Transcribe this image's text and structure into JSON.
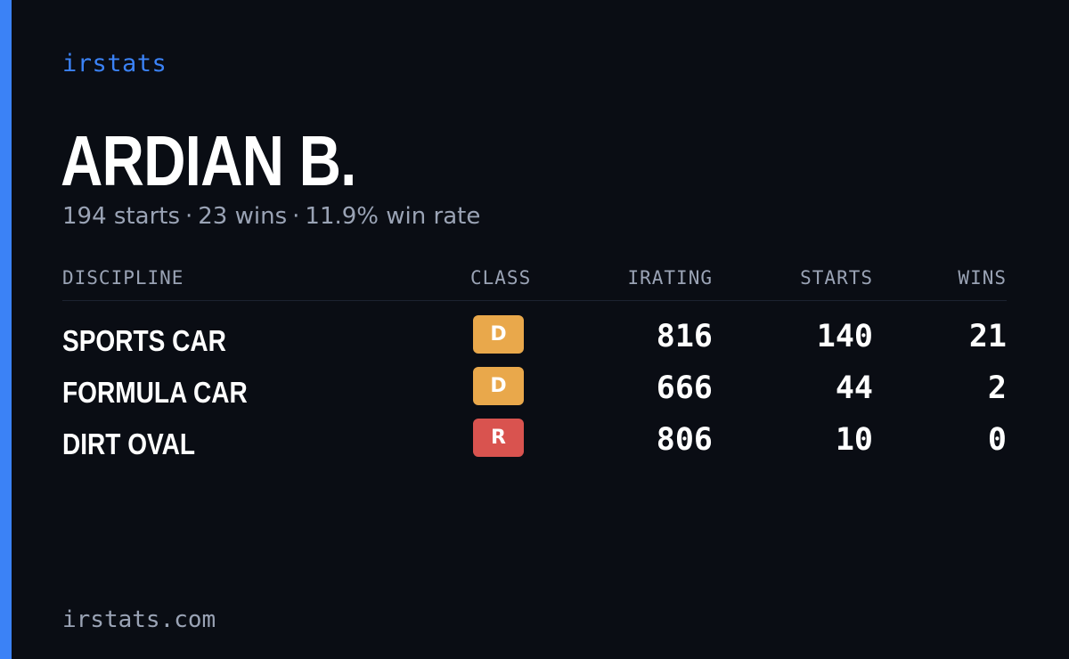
{
  "brand": "irstats",
  "player": {
    "name": "ARDIAN B."
  },
  "summary": {
    "starts": "194 starts",
    "wins": "23 wins",
    "win_rate": "11.9% win rate",
    "separator": "·"
  },
  "table": {
    "headers": {
      "discipline": "DISCIPLINE",
      "class": "CLASS",
      "irating": "IRATING",
      "starts": "STARTS",
      "wins": "WINS"
    },
    "rows": [
      {
        "discipline": "SPORTS CAR",
        "class": "D",
        "class_color": "#e9a84b",
        "irating": "816",
        "starts": "140",
        "wins": "21"
      },
      {
        "discipline": "FORMULA CAR",
        "class": "D",
        "class_color": "#e9a84b",
        "irating": "666",
        "starts": "44",
        "wins": "2"
      },
      {
        "discipline": "DIRT OVAL",
        "class": "R",
        "class_color": "#d9534f",
        "irating": "806",
        "starts": "10",
        "wins": "0"
      }
    ]
  },
  "footer": {
    "domain": "irstats.com"
  },
  "colors": {
    "background": "#0a0d14",
    "accent": "#3b82f6",
    "muted_text": "#9aa3b5"
  }
}
